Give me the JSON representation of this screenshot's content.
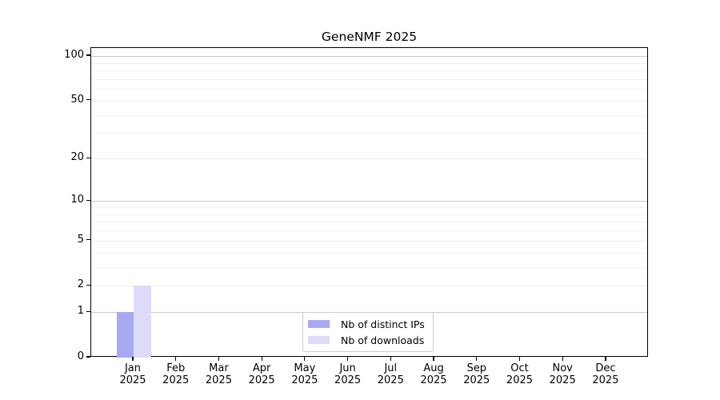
{
  "title": "GeneNMF 2025",
  "chart_data": {
    "type": "bar",
    "title": "GeneNMF 2025",
    "categories": [
      "Jan 2025",
      "Feb 2025",
      "Mar 2025",
      "Apr 2025",
      "May 2025",
      "Jun 2025",
      "Jul 2025",
      "Aug 2025",
      "Sep 2025",
      "Oct 2025",
      "Nov 2025",
      "Dec 2025"
    ],
    "series": [
      {
        "name": "Nb of distinct IPs",
        "color": "#a9a9f3",
        "values": [
          1,
          0,
          0,
          0,
          0,
          0,
          0,
          0,
          0,
          0,
          0,
          0
        ]
      },
      {
        "name": "Nb of downloads",
        "color": "#dcdcf9",
        "values": [
          2,
          0,
          0,
          0,
          0,
          0,
          0,
          0,
          0,
          0,
          0,
          0
        ]
      }
    ],
    "xlabel": "",
    "ylabel": "",
    "y_scale": "log1p",
    "ylim": [
      0,
      113
    ],
    "y_major_ticks": [
      0,
      1,
      2,
      5,
      10,
      20,
      50,
      100
    ],
    "y_emphasized_gridlines": [
      1,
      10,
      100
    ],
    "y_minor_gridlines": [
      3,
      4,
      6,
      7,
      8,
      9,
      30,
      40,
      60,
      70,
      80,
      90
    ],
    "grid": "both",
    "legend_position": "lower-center-inside"
  },
  "colors": {
    "axis": "#000000",
    "background": "#ffffff",
    "grid_major": "#c9c9c9",
    "grid_labeled": "#ececec",
    "grid_minor": "#f0f0f0",
    "legend_border": "#cccccc",
    "text": "#000000"
  }
}
